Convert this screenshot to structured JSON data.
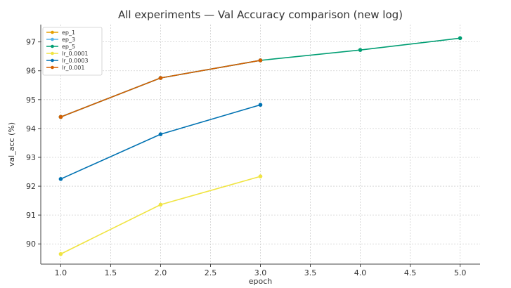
{
  "chart_data": {
    "type": "line",
    "title": "All experiments — Val Accuracy comparison (new log)",
    "xlabel": "epoch",
    "ylabel": "val_acc (%)",
    "xlim": [
      0.8,
      5.2
    ],
    "ylim": [
      89.3,
      97.6
    ],
    "x_ticks": [
      1.0,
      1.5,
      2.0,
      2.5,
      3.0,
      3.5,
      4.0,
      4.5,
      5.0
    ],
    "x_tick_labels": [
      "1.0",
      "1.5",
      "2.0",
      "2.5",
      "3.0",
      "3.5",
      "4.0",
      "4.5",
      "5.0"
    ],
    "y_ticks": [
      90,
      91,
      92,
      93,
      94,
      95,
      96,
      97
    ],
    "y_tick_labels": [
      "90",
      "91",
      "92",
      "93",
      "94",
      "95",
      "96",
      "97"
    ],
    "grid": true,
    "legend_position": "top-left",
    "series": [
      {
        "name": "ep_1",
        "color": "#E69F00",
        "x": [
          1
        ],
        "y": [
          94.4
        ]
      },
      {
        "name": "ep_3",
        "color": "#56B4E9",
        "x": [
          1,
          2,
          3
        ],
        "y": [
          94.4,
          95.75,
          96.36
        ]
      },
      {
        "name": "ep_5",
        "color": "#009E73",
        "x": [
          1,
          2,
          3,
          4,
          5
        ],
        "y": [
          94.4,
          95.75,
          96.36,
          96.72,
          97.13
        ]
      },
      {
        "name": "lr_0.0001",
        "color": "#F0E442",
        "x": [
          1,
          2,
          3
        ],
        "y": [
          89.65,
          91.36,
          92.34
        ]
      },
      {
        "name": "lr_0.0003",
        "color": "#0072B2",
        "x": [
          1,
          2,
          3
        ],
        "y": [
          92.25,
          93.8,
          94.82
        ]
      },
      {
        "name": "lr_0.001",
        "color": "#D55E00",
        "x": [
          1,
          2,
          3
        ],
        "y": [
          94.4,
          95.75,
          96.36
        ]
      }
    ]
  }
}
